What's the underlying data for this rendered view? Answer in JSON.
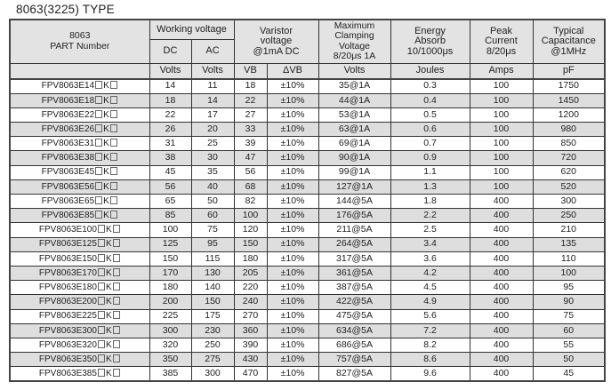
{
  "title": "8063(3225) TYPE",
  "headers": {
    "part_line1": "8063",
    "part_line2": "PART Number",
    "working_voltage": "Working voltage",
    "dc": "DC",
    "ac": "AC",
    "varistor_l1": "Varistor",
    "varistor_l2": "voltage",
    "varistor_l3": "@1mA DC",
    "clamp_l1": "Maximum",
    "clamp_l2": "Clamping",
    "clamp_l3": "Voltage",
    "clamp_l4": "8/20μs 1A",
    "energy_l1": "Energy",
    "energy_l2": "Absorb",
    "energy_l3": "10/1000μs",
    "peak_l1": "Peak",
    "peak_l2": "Current",
    "peak_l3": "8/20μs",
    "cap_l1": "Typical",
    "cap_l2": "Capacitance",
    "cap_l3": "@1MHz"
  },
  "units": [
    "Volts",
    "Volts",
    "VB",
    "ΔVB",
    "Volts",
    "Joules",
    "Amps",
    "pF"
  ],
  "rows": [
    [
      "FPV8063E14",
      "K",
      "14",
      "11",
      "18",
      "±10%",
      "35@1A",
      "0.3",
      "100",
      "1750"
    ],
    [
      "FPV8063E18",
      "K",
      "18",
      "14",
      "22",
      "±10%",
      "44@1A",
      "0.4",
      "100",
      "1450"
    ],
    [
      "FPV8063E22",
      "K",
      "22",
      "17",
      "27",
      "±10%",
      "53@1A",
      "0.5",
      "100",
      "1200"
    ],
    [
      "FPV8063E26",
      "K",
      "26",
      "20",
      "33",
      "±10%",
      "63@1A",
      "0.6",
      "100",
      "980"
    ],
    [
      "FPV8063E31",
      "K",
      "31",
      "25",
      "39",
      "±10%",
      "69@1A",
      "0.7",
      "100",
      "850"
    ],
    [
      "FPV8063E38",
      "K",
      "38",
      "30",
      "47",
      "±10%",
      "90@1A",
      "0.9",
      "100",
      "720"
    ],
    [
      "FPV8063E45",
      "K",
      "45",
      "35",
      "56",
      "±10%",
      "99@1A",
      "1.1",
      "100",
      "620"
    ],
    [
      "FPV8063E56",
      "K",
      "56",
      "40",
      "68",
      "±10%",
      "127@1A",
      "1.3",
      "100",
      "520"
    ],
    [
      "FPV8063E65",
      "K",
      "65",
      "50",
      "82",
      "±10%",
      "144@5A",
      "1.8",
      "400",
      "300"
    ],
    [
      "FPV8063E85",
      "K",
      "85",
      "60",
      "100",
      "±10%",
      "176@5A",
      "2.2",
      "400",
      "250"
    ],
    [
      "FPV8063E100",
      "K",
      "100",
      "75",
      "120",
      "±10%",
      "211@5A",
      "2.5",
      "400",
      "210"
    ],
    [
      "FPV8063E125",
      "K",
      "125",
      "95",
      "150",
      "±10%",
      "264@5A",
      "3.4",
      "400",
      "135"
    ],
    [
      "FPV8063E150",
      "K",
      "150",
      "115",
      "180",
      "±10%",
      "317@5A",
      "3.6",
      "400",
      "110"
    ],
    [
      "FPV8063E170",
      "K",
      "170",
      "130",
      "205",
      "±10%",
      "361@5A",
      "4.2",
      "400",
      "100"
    ],
    [
      "FPV8063E180",
      "K",
      "180",
      "140",
      "220",
      "±10%",
      "387@5A",
      "4.5",
      "400",
      "95"
    ],
    [
      "FPV8063E200",
      "K",
      "200",
      "150",
      "240",
      "±10%",
      "422@5A",
      "4.9",
      "400",
      "90"
    ],
    [
      "FPV8063E225",
      "K",
      "225",
      "175",
      "270",
      "±10%",
      "475@5A",
      "5.6",
      "400",
      "75"
    ],
    [
      "FPV8063E300",
      "K",
      "300",
      "230",
      "360",
      "±10%",
      "634@5A",
      "7.2",
      "400",
      "60"
    ],
    [
      "FPV8063E320",
      "K",
      "320",
      "250",
      "390",
      "±10%",
      "686@5A",
      "8.2",
      "400",
      "55"
    ],
    [
      "FPV8063E350",
      "K",
      "350",
      "275",
      "430",
      "±10%",
      "757@5A",
      "8.6",
      "400",
      "50"
    ],
    [
      "FPV8063E385",
      "K",
      "385",
      "300",
      "470",
      "±10%",
      "827@5A",
      "9.6",
      "400",
      "45"
    ]
  ]
}
